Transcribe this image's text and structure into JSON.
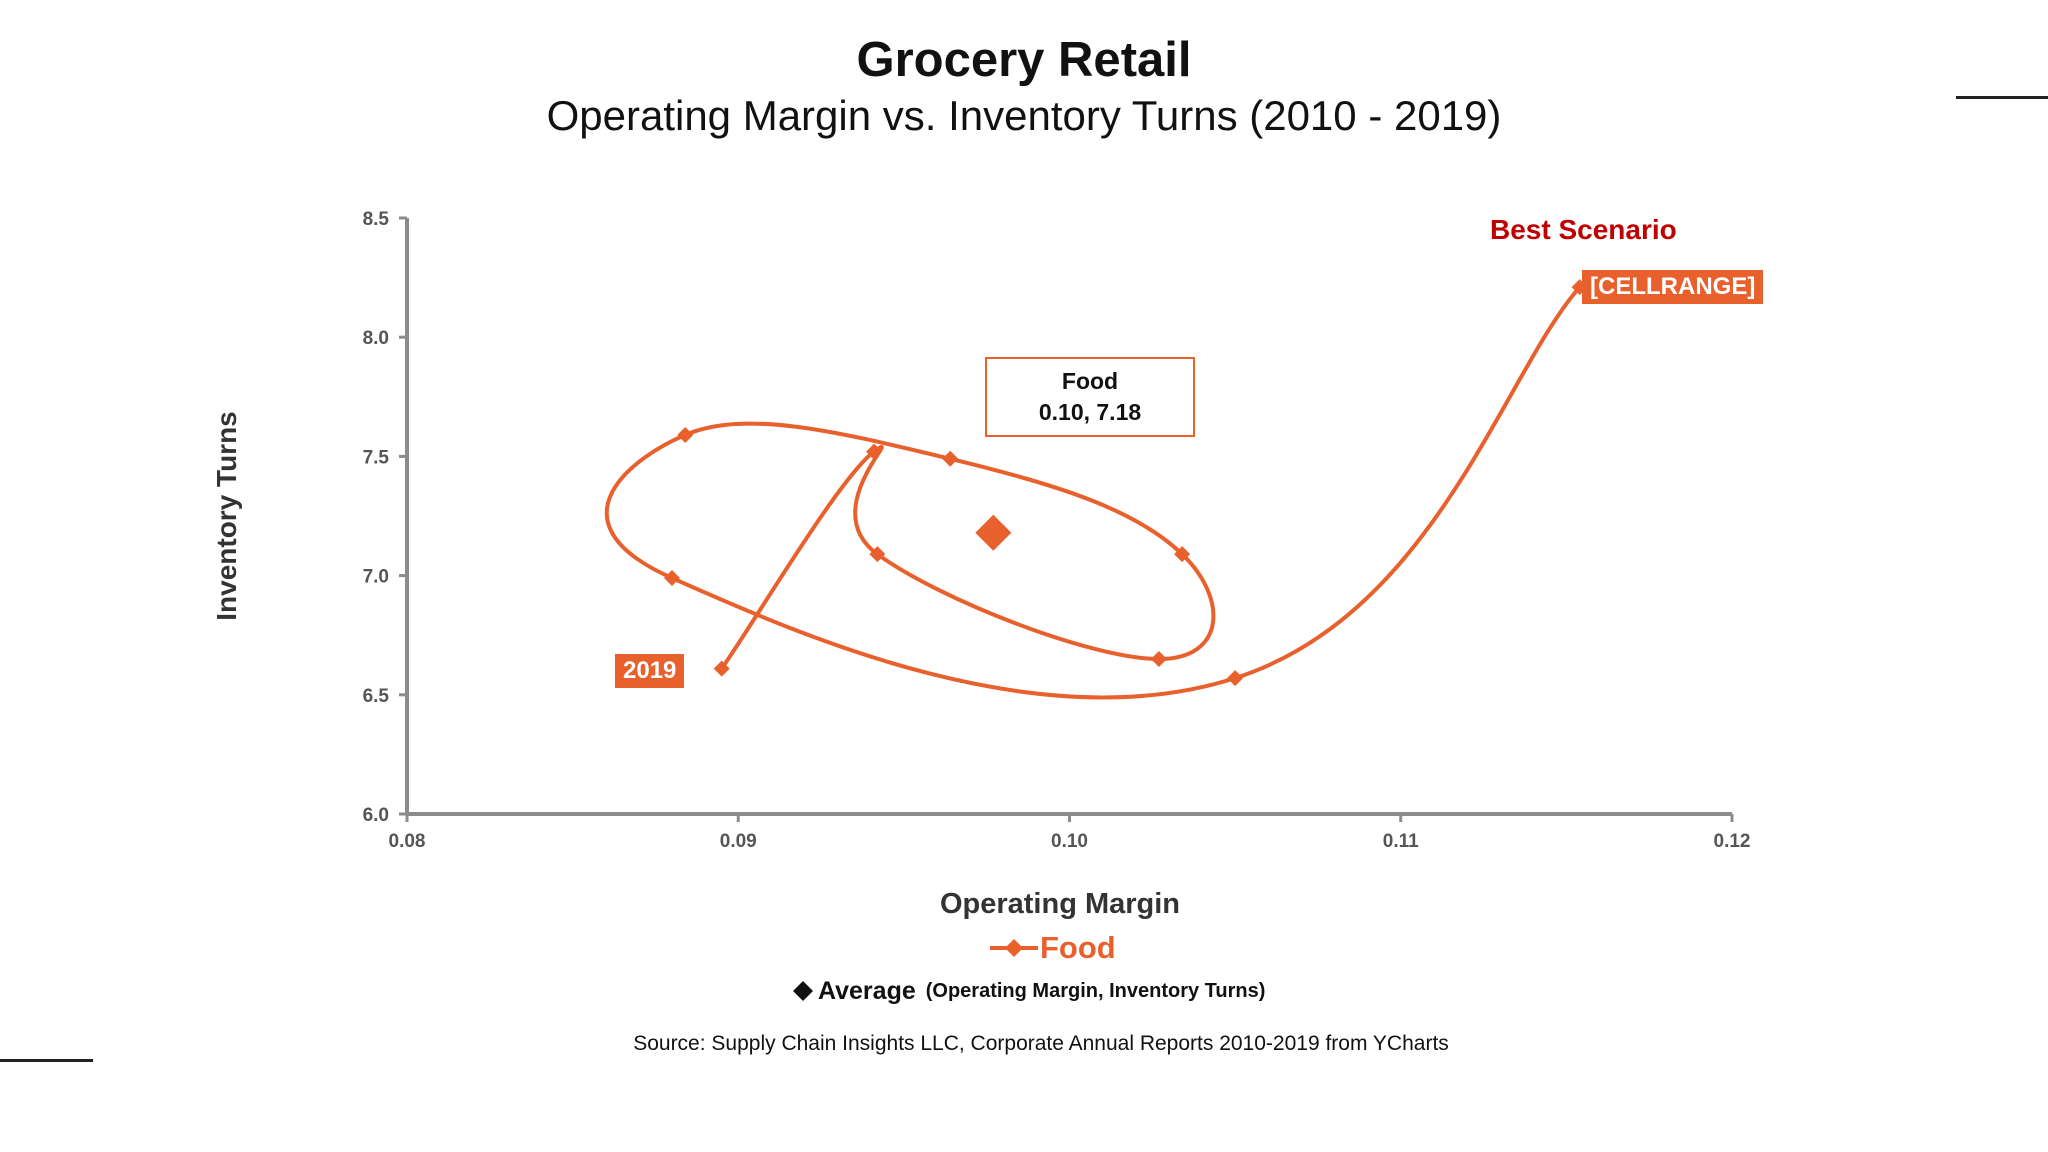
{
  "page": {
    "title": "Grocery Retail",
    "subtitle": "Operating Margin vs. Inventory Turns (2010 - 2019)",
    "source": "Source:  Supply Chain Insights LLC, Corporate Annual Reports 2010-2019 from YCharts"
  },
  "annotations": {
    "best_scenario": "Best Scenario",
    "start_label": "[CELLRANGE]",
    "end_label": "2019",
    "average_box_title": "Food",
    "average_box_value": "0.10, 7.18"
  },
  "legend": {
    "food_label": "Food",
    "average_label": "Average",
    "average_sub": "(Operating Margin, Inventory Turns)"
  },
  "colors": {
    "series": "#e8602c",
    "best_scenario": "#c00000",
    "axis": "#8c8c8c"
  },
  "chart_data": {
    "type": "scatter",
    "title": "Grocery Retail",
    "subtitle": "Operating Margin vs. Inventory Turns (2010 - 2019)",
    "xlabel": "Operating Margin",
    "ylabel": "Inventory Turns",
    "xlim": [
      0.08,
      0.12
    ],
    "ylim": [
      6.0,
      8.5
    ],
    "xticks": [
      "0.08",
      "0.09",
      "0.10",
      "0.11",
      "0.12"
    ],
    "yticks": [
      "6.0",
      "6.5",
      "7.0",
      "7.5",
      "8.0",
      "8.5"
    ],
    "grid": false,
    "series": [
      {
        "name": "Food",
        "connected": true,
        "smooth": true,
        "points": [
          {
            "x": 0.1154,
            "y": 8.21
          },
          {
            "x": 0.105,
            "y": 6.57
          },
          {
            "x": 0.088,
            "y": 6.99
          },
          {
            "x": 0.0884,
            "y": 7.59
          },
          {
            "x": 0.0964,
            "y": 7.49
          },
          {
            "x": 0.1034,
            "y": 7.09
          },
          {
            "x": 0.1027,
            "y": 6.65
          },
          {
            "x": 0.0942,
            "y": 7.09
          },
          {
            "x": 0.0941,
            "y": 7.52
          },
          {
            "x": 0.0895,
            "y": 6.61
          }
        ]
      },
      {
        "name": "Average",
        "connected": false,
        "points": [
          {
            "x": 0.0977,
            "y": 7.18
          }
        ]
      }
    ]
  }
}
